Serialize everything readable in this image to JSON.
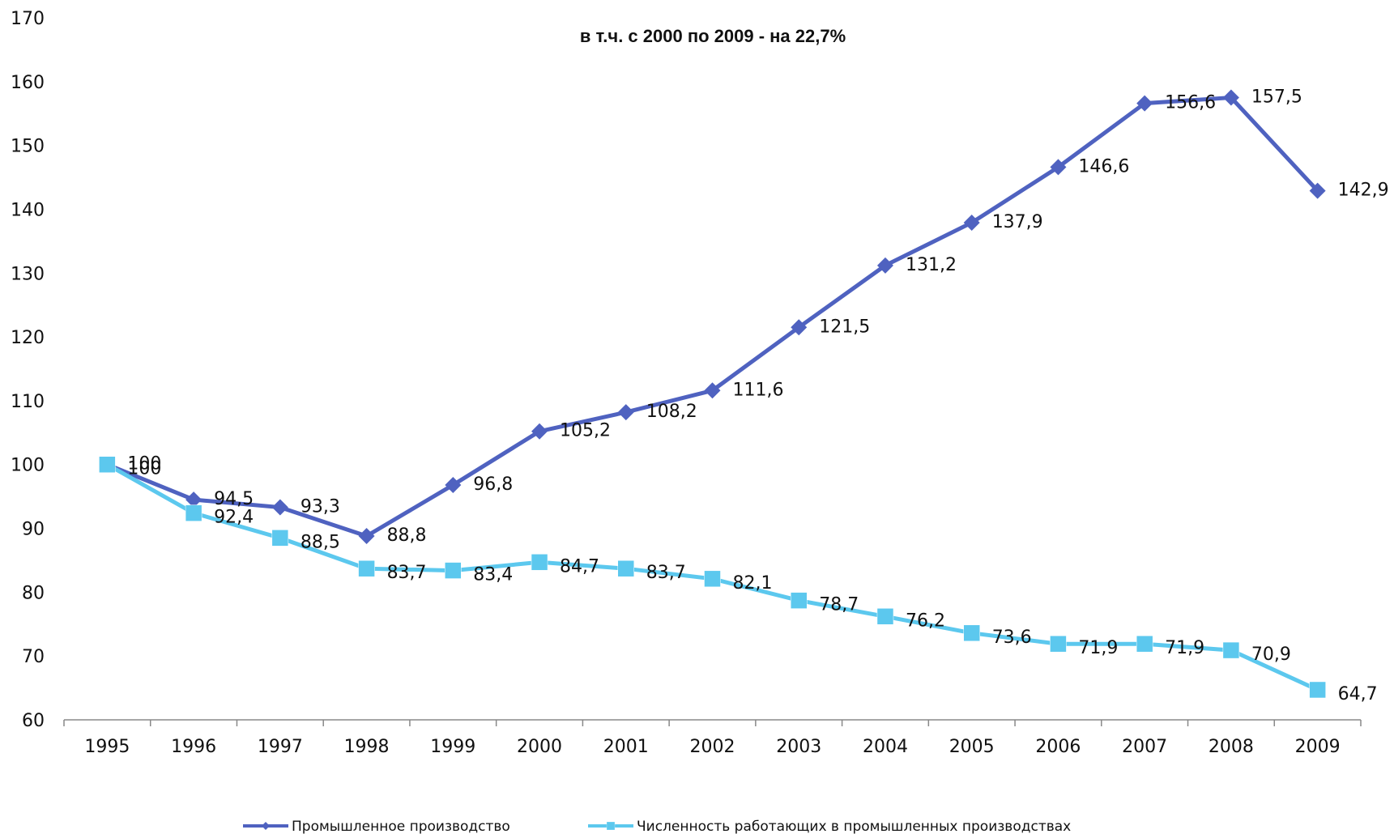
{
  "chart_data": {
    "type": "line",
    "title": "в т.ч. с 2000 по 2009 - на 22,7%",
    "categories": [
      "1995",
      "1996",
      "1997",
      "1998",
      "1999",
      "2000",
      "2001",
      "2002",
      "2003",
      "2004",
      "2005",
      "2006",
      "2007",
      "2008",
      "2009"
    ],
    "series": [
      {
        "name": "Промышленное производство",
        "color": "#4f62c0",
        "marker": "diamond",
        "values": [
          100,
          94.5,
          93.3,
          88.8,
          96.8,
          105.2,
          108.2,
          111.6,
          121.5,
          131.2,
          137.9,
          146.6,
          156.6,
          157.5,
          142.9
        ],
        "value_labels": [
          "100",
          "94,5",
          "93,3",
          "88,8",
          "96,8",
          "105,2",
          "108,2",
          "111,6",
          "121,5",
          "131,2",
          "137,9",
          "146,6",
          "156,6",
          "157,5",
          "142,9"
        ]
      },
      {
        "name": "Численность работающих в промышленных производствах",
        "color": "#5cc8ee",
        "marker": "square",
        "values": [
          100,
          92.4,
          88.5,
          83.7,
          83.4,
          84.7,
          83.7,
          82.1,
          78.7,
          76.2,
          73.6,
          71.9,
          71.9,
          70.9,
          64.7
        ],
        "value_labels": [
          "100",
          "92,4",
          "88,5",
          "83,7",
          "83,4",
          "84,7",
          "83,7",
          "82,1",
          "78,7",
          "76,2",
          "73,6",
          "71,9",
          "71,9",
          "70,9",
          "64,7"
        ]
      }
    ],
    "ylim": [
      60,
      170
    ],
    "yticks": [
      60,
      70,
      80,
      90,
      100,
      110,
      120,
      130,
      140,
      150,
      160,
      170
    ],
    "grid": false,
    "legend": "bottom",
    "title_color": "#ff0000"
  }
}
